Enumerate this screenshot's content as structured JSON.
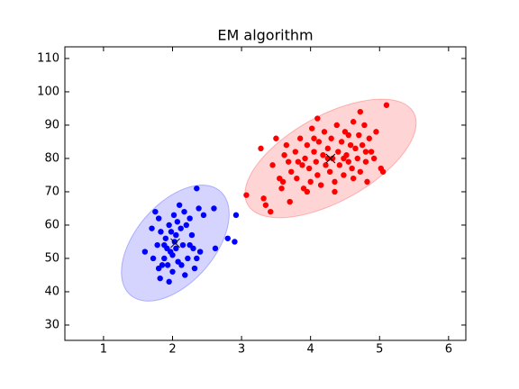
{
  "chart_data": {
    "type": "scatter",
    "title": "EM algorithm",
    "xlim": [
      0.44,
      6.25
    ],
    "ylim": [
      25.4,
      113.5
    ],
    "xticks": [
      1,
      2,
      3,
      4,
      5,
      6
    ],
    "yticks": [
      30,
      40,
      50,
      60,
      70,
      80,
      90,
      100,
      110
    ],
    "series": [
      {
        "color": "#0000ff",
        "x": [
          1.6,
          1.75,
          1.8,
          1.83,
          1.78,
          1.85,
          1.8,
          1.88,
          1.9,
          1.95,
          1.92,
          1.97,
          2.0,
          2.02,
          2.05,
          2.03,
          2.08,
          2.1,
          2.12,
          2.15,
          2.18,
          2.2,
          2.22,
          2.25,
          2.28,
          2.3,
          2.32,
          2.35,
          2.38,
          2.4,
          2.45,
          2.6,
          2.62,
          2.8,
          2.9,
          2.92,
          1.82,
          1.95,
          2.0,
          1.7,
          1.72,
          2.07,
          2.25,
          1.88,
          2.13,
          1.98,
          2.17,
          2.35,
          1.93,
          2.05
        ],
        "y": [
          52,
          64,
          62,
          58,
          54,
          48,
          47,
          50,
          56,
          60,
          53,
          52,
          51,
          63,
          57,
          55,
          49,
          66,
          59,
          54,
          45,
          60,
          50,
          62,
          57,
          53,
          47,
          71,
          65,
          52,
          63,
          65,
          53,
          56,
          55,
          63,
          44,
          43,
          46,
          59,
          50,
          61,
          54,
          54,
          48,
          58,
          64,
          50,
          48,
          53
        ]
      },
      {
        "color": "#ff0000",
        "x": [
          3.07,
          3.28,
          3.32,
          3.35,
          3.42,
          3.45,
          3.5,
          3.55,
          3.58,
          3.62,
          3.65,
          3.68,
          3.7,
          3.72,
          3.78,
          3.8,
          3.85,
          3.88,
          3.9,
          3.92,
          3.95,
          3.98,
          4.0,
          4.02,
          4.05,
          4.08,
          4.1,
          4.12,
          4.15,
          4.18,
          4.2,
          4.22,
          4.25,
          4.28,
          4.3,
          4.32,
          4.35,
          4.38,
          4.4,
          4.42,
          4.45,
          4.48,
          4.5,
          4.52,
          4.55,
          4.58,
          4.6,
          4.62,
          4.65,
          4.68,
          4.7,
          4.72,
          4.75,
          4.78,
          4.8,
          4.82,
          4.85,
          4.88,
          4.92,
          4.95,
          5.02,
          5.05,
          5.1,
          4.1,
          3.95,
          4.35,
          4.62,
          4.05,
          4.48,
          4.25,
          3.82,
          4.72,
          4.55,
          3.6,
          4.8
        ],
        "y": [
          69,
          83,
          68,
          66,
          64,
          78,
          86,
          74,
          71,
          81,
          84,
          79,
          67,
          76,
          82,
          74,
          86,
          78,
          71,
          80,
          84,
          77,
          73,
          89,
          82,
          79,
          75,
          85,
          72,
          81,
          88,
          78,
          83,
          76,
          86,
          80,
          73,
          90,
          82,
          78,
          85,
          75,
          88,
          81,
          79,
          84,
          77,
          91,
          83,
          80,
          87,
          76,
          84,
          90,
          79,
          73,
          86,
          82,
          80,
          88,
          77,
          76,
          96,
          92,
          70,
          70,
          74,
          86,
          80,
          80,
          79,
          94,
          87,
          73,
          82
        ]
      }
    ],
    "ellipses": [
      {
        "color": "#0000ff",
        "center": [
          2.04,
          54.6
        ],
        "cov": [
          [
            0.61,
            6.8
          ],
          [
            6.8,
            303
          ]
        ]
      },
      {
        "color": "#ff0000",
        "center": [
          4.29,
          80.0
        ],
        "cov": [
          [
            1.54,
            13.2
          ],
          [
            13.2,
            317
          ]
        ]
      }
    ]
  }
}
